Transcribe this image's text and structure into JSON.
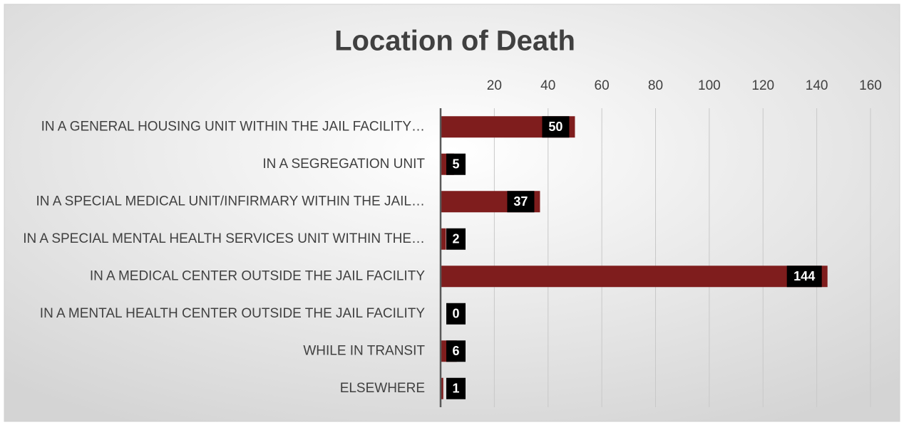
{
  "chart_data": {
    "type": "bar",
    "orientation": "horizontal",
    "title": "Location of Death",
    "categories": [
      "IN A GENERAL HOUSING UNIT WITHIN THE JAIL FACILITY…",
      "IN A SEGREGATION UNIT",
      "IN A SPECIAL MEDICAL UNIT/INFIRMARY WITHIN THE JAIL…",
      "IN A SPECIAL MENTAL HEALTH SERVICES UNIT WITHIN THE…",
      "IN A MEDICAL CENTER OUTSIDE THE JAIL FACILITY",
      "IN A MENTAL HEALTH CENTER OUTSIDE THE JAIL FACILITY",
      "WHILE IN TRANSIT",
      "ELSEWHERE"
    ],
    "values": [
      50,
      5,
      37,
      2,
      144,
      0,
      6,
      1
    ],
    "color": "#7f1d1d",
    "xlim": [
      0,
      160
    ],
    "xticks": [
      20,
      40,
      60,
      80,
      100,
      120,
      140,
      160
    ],
    "grid": true
  }
}
